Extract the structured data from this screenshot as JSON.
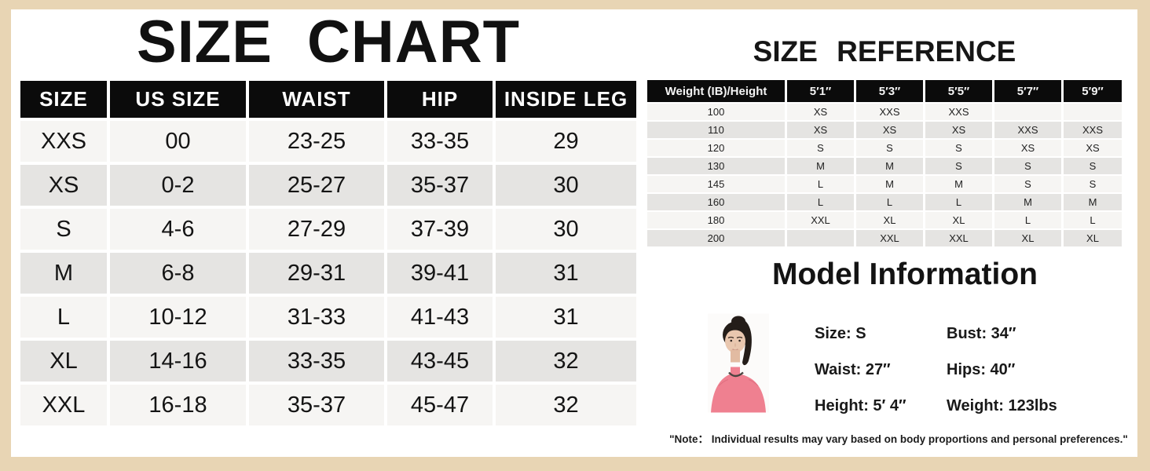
{
  "colors": {
    "background_beige": "#e8d5b4",
    "panel_white": "#ffffff",
    "table_header_black": "#0b0b0b",
    "row_stripe_light": "#f6f5f3",
    "row_stripe_dark": "#e5e4e2",
    "model_shirt_pink": "#ef8090"
  },
  "size_chart": {
    "title": "SIZE CHART",
    "columns": [
      "SIZE",
      "US SIZE",
      "WAIST",
      "HIP",
      "INSIDE LEG"
    ],
    "rows": [
      [
        "XXS",
        "00",
        "23-25",
        "33-35",
        "29"
      ],
      [
        "XS",
        "0-2",
        "25-27",
        "35-37",
        "30"
      ],
      [
        "S",
        "4-6",
        "27-29",
        "37-39",
        "30"
      ],
      [
        "M",
        "6-8",
        "29-31",
        "39-41",
        "31"
      ],
      [
        "L",
        "10-12",
        "31-33",
        "41-43",
        "31"
      ],
      [
        "XL",
        "14-16",
        "33-35",
        "43-45",
        "32"
      ],
      [
        "XXL",
        "16-18",
        "35-37",
        "45-47",
        "32"
      ]
    ]
  },
  "size_reference": {
    "title": "SIZE REFERENCE",
    "columns": [
      "Weight (IB)/Height",
      "5′1″",
      "5′3″",
      "5′5″",
      "5′7″",
      "5′9″"
    ],
    "rows": [
      [
        "100",
        "XS",
        "XXS",
        "XXS",
        "",
        ""
      ],
      [
        "110",
        "XS",
        "XS",
        "XS",
        "XXS",
        "XXS"
      ],
      [
        "120",
        "S",
        "S",
        "S",
        "XS",
        "XS"
      ],
      [
        "130",
        "M",
        "M",
        "S",
        "S",
        "S"
      ],
      [
        "145",
        "L",
        "M",
        "M",
        "S",
        "S"
      ],
      [
        "160",
        "L",
        "L",
        "L",
        "M",
        "M"
      ],
      [
        "180",
        "XXL",
        "XL",
        "XL",
        "L",
        "L"
      ],
      [
        "200",
        "",
        "XXL",
        "XXL",
        "XL",
        "XL"
      ]
    ]
  },
  "model_information": {
    "title": "Model Information",
    "stats_left": [
      "Size: S",
      "Waist: 27″",
      "Height: 5′ 4″"
    ],
    "stats_right": [
      "Bust: 34″",
      "Hips: 40″",
      "Weight: 123lbs"
    ]
  },
  "note": "\"Note： Individual results may vary based on body proportions and personal preferences.\""
}
